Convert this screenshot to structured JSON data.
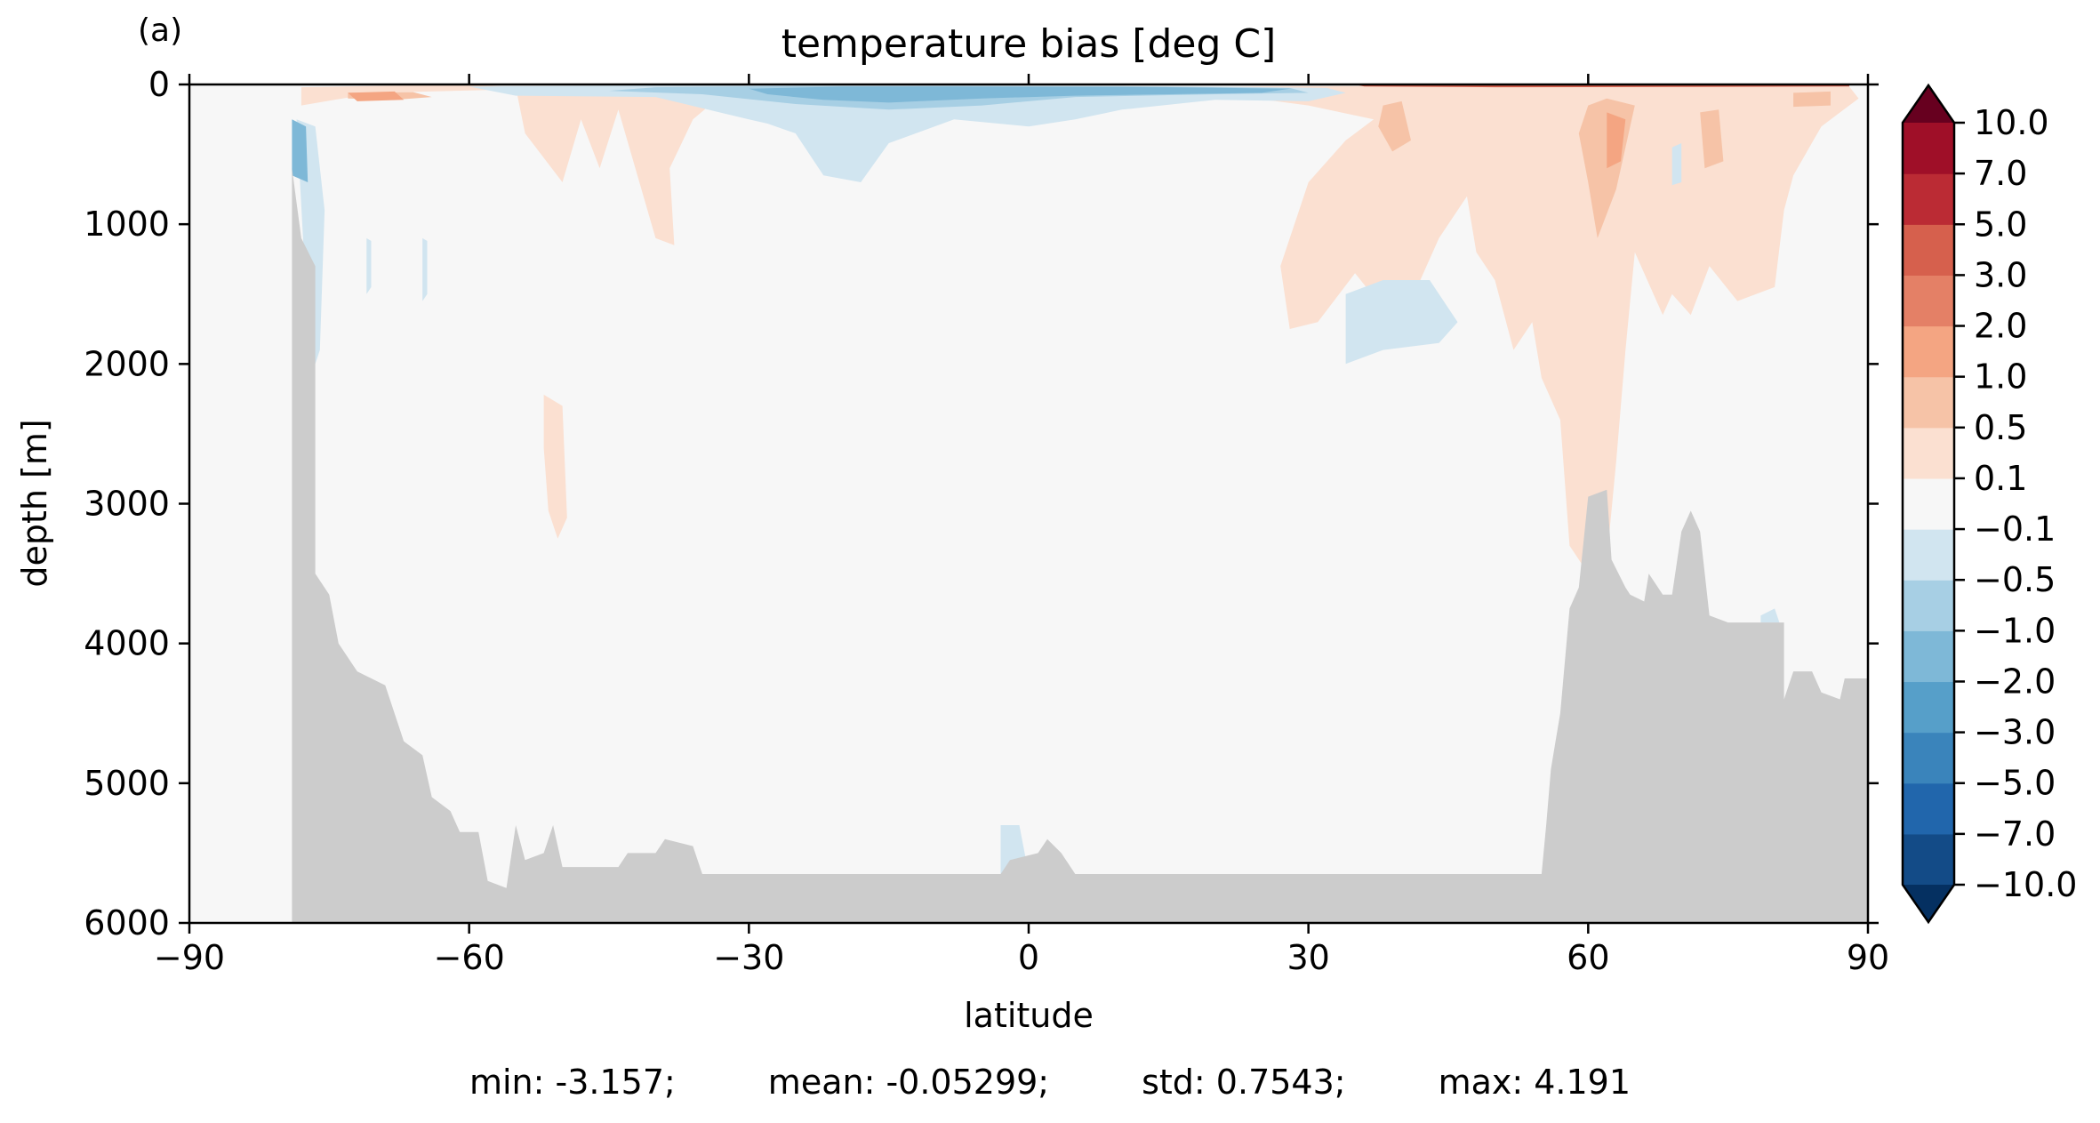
{
  "panel_label": "(a)",
  "chart_data": {
    "type": "heatmap",
    "title": "temperature bias [deg C]",
    "xlabel": "latitude",
    "ylabel": "depth [m]",
    "xlim": [
      -90,
      90
    ],
    "ylim": [
      6000,
      0
    ],
    "y_inverted": true,
    "xticks": [
      -90,
      -60,
      -30,
      0,
      30,
      60,
      90
    ],
    "xtick_labels": [
      "−90",
      "−60",
      "−30",
      "0",
      "30",
      "60",
      "90"
    ],
    "yticks": [
      0,
      1000,
      2000,
      3000,
      4000,
      5000,
      6000
    ],
    "ytick_labels": [
      "0",
      "1000",
      "2000",
      "3000",
      "4000",
      "5000",
      "6000"
    ],
    "grid": false,
    "colorbar": {
      "levels": [
        -10.0,
        -7.0,
        -5.0,
        -3.0,
        -2.0,
        -1.0,
        -0.5,
        -0.1,
        0.1,
        0.5,
        1.0,
        2.0,
        3.0,
        5.0,
        7.0,
        10.0
      ],
      "labels": [
        "−10.0",
        "−7.0",
        "−5.0",
        "−3.0",
        "−2.0",
        "−1.0",
        "−0.5",
        "−0.1",
        "0.1",
        "0.5",
        "1.0",
        "2.0",
        "3.0",
        "5.0",
        "7.0",
        "10.0"
      ],
      "colors": [
        "#134b87",
        "#2166ac",
        "#3a84bb",
        "#569fc9",
        "#7eb8d7",
        "#a7cfe4",
        "#d1e5f0",
        "#f7f7f7",
        "#fbe0d1",
        "#f6c3a7",
        "#f4a582",
        "#e48066",
        "#d6604d",
        "#bb2b34",
        "#9f0f28"
      ],
      "extend": "both",
      "extend_colors": {
        "under": "#053061",
        "over": "#67001f"
      }
    },
    "land_color": "#cccccc",
    "bathymetry": [
      [
        -90,
        6000
      ],
      [
        -79,
        6000
      ],
      [
        -79,
        600
      ],
      [
        -78,
        1100
      ],
      [
        -76.5,
        1300
      ],
      [
        -76.5,
        3500
      ],
      [
        -75,
        3650
      ],
      [
        -74,
        4000
      ],
      [
        -72,
        4200
      ],
      [
        -69,
        4300
      ],
      [
        -67,
        4700
      ],
      [
        -65,
        4800
      ],
      [
        -64,
        5100
      ],
      [
        -62,
        5200
      ],
      [
        -61,
        5350
      ],
      [
        -59,
        5350
      ],
      [
        -58,
        5700
      ],
      [
        -56,
        5750
      ],
      [
        -55,
        5300
      ],
      [
        -54,
        5550
      ],
      [
        -52,
        5500
      ],
      [
        -51,
        5300
      ],
      [
        -50,
        5600
      ],
      [
        -44,
        5600
      ],
      [
        -43,
        5500
      ],
      [
        -40,
        5500
      ],
      [
        -39,
        5400
      ],
      [
        -36,
        5450
      ],
      [
        -35,
        5650
      ],
      [
        -3,
        5650
      ],
      [
        -2,
        5550
      ],
      [
        1,
        5500
      ],
      [
        2,
        5400
      ],
      [
        3.5,
        5500
      ],
      [
        5,
        5650
      ],
      [
        55,
        5650
      ],
      [
        55.5,
        5300
      ],
      [
        56,
        4900
      ],
      [
        56.5,
        4700
      ],
      [
        57,
        4500
      ],
      [
        58,
        3750
      ],
      [
        59,
        3600
      ],
      [
        60,
        2950
      ],
      [
        62,
        2900
      ],
      [
        62.5,
        3400
      ],
      [
        64,
        3600
      ],
      [
        64.5,
        3650
      ],
      [
        66,
        3700
      ],
      [
        66.5,
        3500
      ],
      [
        68,
        3650
      ],
      [
        69,
        3650
      ],
      [
        70,
        3200
      ],
      [
        71,
        3050
      ],
      [
        72,
        3200
      ],
      [
        73,
        3800
      ],
      [
        75,
        3850
      ],
      [
        81,
        3850
      ],
      [
        81,
        4400
      ],
      [
        82,
        4200
      ],
      [
        84,
        4200
      ],
      [
        85,
        4350
      ],
      [
        87,
        4400
      ],
      [
        87.5,
        4250
      ],
      [
        90,
        4250
      ],
      [
        90,
        6000
      ]
    ],
    "contours": [
      {
        "value": 0.3,
        "points": [
          [
            -78,
            20
          ],
          [
            -70,
            10
          ],
          [
            -60,
            0
          ],
          [
            -55,
            20
          ],
          [
            -54,
            350
          ],
          [
            -50,
            700
          ],
          [
            -48,
            250
          ],
          [
            -46,
            600
          ],
          [
            -44,
            180
          ],
          [
            -40,
            1100
          ],
          [
            -38,
            1150
          ],
          [
            -38.5,
            600
          ],
          [
            -36,
            250
          ],
          [
            -33,
            80
          ],
          [
            -40,
            45
          ],
          [
            -55,
            35
          ],
          [
            -70,
            60
          ],
          [
            -78,
            150
          ]
        ]
      },
      {
        "value": 0.8,
        "points": [
          [
            -73,
            60
          ],
          [
            -66,
            55
          ],
          [
            -64,
            90
          ],
          [
            -68,
            110
          ],
          [
            -73,
            100
          ]
        ]
      },
      {
        "value": 0.3,
        "points": [
          [
            -52,
            2220
          ],
          [
            -50,
            2300
          ],
          [
            -49.5,
            3100
          ],
          [
            -50.5,
            3250
          ],
          [
            -51.5,
            3050
          ],
          [
            -52,
            2600
          ]
        ]
      },
      {
        "value": 0.3,
        "points": [
          [
            15,
            20
          ],
          [
            40,
            8
          ],
          [
            88,
            15
          ],
          [
            89,
            100
          ],
          [
            85,
            300
          ],
          [
            82,
            650
          ],
          [
            81,
            900
          ],
          [
            80,
            1450
          ],
          [
            76,
            1550
          ],
          [
            73,
            1300
          ],
          [
            71,
            1650
          ],
          [
            69,
            1500
          ],
          [
            68,
            1650
          ],
          [
            65,
            1200
          ],
          [
            64,
            1900
          ],
          [
            63,
            2700
          ],
          [
            62,
            3400
          ],
          [
            60,
            3500
          ],
          [
            58,
            3300
          ],
          [
            57,
            2400
          ],
          [
            55,
            2100
          ],
          [
            54,
            1700
          ],
          [
            52,
            1900
          ],
          [
            50,
            1400
          ],
          [
            48,
            1200
          ],
          [
            47,
            800
          ],
          [
            44,
            1100
          ],
          [
            42,
            1400
          ],
          [
            40,
            1650
          ],
          [
            38,
            1600
          ],
          [
            35,
            1350
          ],
          [
            31,
            1700
          ],
          [
            28,
            1750
          ],
          [
            27,
            1300
          ],
          [
            30,
            700
          ],
          [
            34,
            400
          ],
          [
            37,
            250
          ],
          [
            30,
            150
          ],
          [
            22,
            80
          ],
          [
            15,
            60
          ]
        ]
      },
      {
        "value": 0.8,
        "points": [
          [
            60,
            150
          ],
          [
            62,
            100
          ],
          [
            65,
            150
          ],
          [
            64,
            450
          ],
          [
            63,
            750
          ],
          [
            61,
            1100
          ],
          [
            60,
            700
          ],
          [
            59,
            350
          ]
        ]
      },
      {
        "value": 1.5,
        "points": [
          [
            62,
            200
          ],
          [
            64,
            250
          ],
          [
            63.5,
            550
          ],
          [
            62,
            600
          ]
        ]
      },
      {
        "value": 0.8,
        "points": [
          [
            38,
            150
          ],
          [
            40,
            120
          ],
          [
            41,
            400
          ],
          [
            39,
            480
          ],
          [
            37.5,
            300
          ]
        ]
      },
      {
        "value": 0.8,
        "points": [
          [
            72,
            200
          ],
          [
            74,
            180
          ],
          [
            74.5,
            550
          ],
          [
            72.5,
            600
          ]
        ]
      },
      {
        "value": 0.8,
        "points": [
          [
            82,
            60
          ],
          [
            86,
            50
          ],
          [
            86,
            150
          ],
          [
            82,
            160
          ]
        ]
      },
      {
        "value": 3.0,
        "points": [
          [
            35,
            2
          ],
          [
            55,
            0
          ],
          [
            75,
            0
          ],
          [
            88,
            2
          ],
          [
            88,
            14
          ],
          [
            70,
            18
          ],
          [
            50,
            20
          ],
          [
            36,
            14
          ]
        ]
      },
      {
        "value": 1.5,
        "points": [
          [
            -73,
            60
          ],
          [
            -68,
            50
          ],
          [
            -67,
            110
          ],
          [
            -72,
            120
          ]
        ]
      },
      {
        "value": -0.3,
        "points": [
          [
            -60,
            15
          ],
          [
            -36,
            6
          ],
          [
            -5,
            10
          ],
          [
            20,
            15
          ],
          [
            32,
            25
          ],
          [
            34,
            60
          ],
          [
            30,
            120
          ],
          [
            20,
            110
          ],
          [
            10,
            180
          ],
          [
            5,
            250
          ],
          [
            0,
            300
          ],
          [
            -8,
            250
          ],
          [
            -15,
            420
          ],
          [
            -18,
            700
          ],
          [
            -22,
            650
          ],
          [
            -25,
            350
          ],
          [
            -28,
            280
          ],
          [
            -30,
            250
          ],
          [
            -40,
            90
          ],
          [
            -55,
            80
          ]
        ]
      },
      {
        "value": -0.8,
        "points": [
          [
            -40,
            20
          ],
          [
            -25,
            12
          ],
          [
            -8,
            10
          ],
          [
            10,
            12
          ],
          [
            28,
            25
          ],
          [
            30,
            60
          ],
          [
            20,
            70
          ],
          [
            5,
            90
          ],
          [
            -5,
            150
          ],
          [
            -15,
            180
          ],
          [
            -25,
            140
          ],
          [
            -35,
            70
          ],
          [
            -45,
            45
          ]
        ]
      },
      {
        "value": -1.5,
        "points": [
          [
            -30,
            30
          ],
          [
            -20,
            15
          ],
          [
            -10,
            15
          ],
          [
            15,
            20
          ],
          [
            28,
            30
          ],
          [
            25,
            60
          ],
          [
            15,
            70
          ],
          [
            5,
            80
          ],
          [
            -5,
            100
          ],
          [
            -15,
            130
          ],
          [
            -22,
            110
          ],
          [
            -28,
            70
          ]
        ]
      },
      {
        "value": -0.3,
        "points": [
          [
            -78.5,
            250
          ],
          [
            -76.5,
            300
          ],
          [
            -75.5,
            900
          ],
          [
            -76,
            1900
          ],
          [
            -77,
            2100
          ]
        ]
      },
      {
        "value": -1.5,
        "points": [
          [
            -79,
            250
          ],
          [
            -77.5,
            300
          ],
          [
            -77.3,
            700
          ],
          [
            -79,
            650
          ]
        ]
      },
      {
        "value": -0.3,
        "points": [
          [
            -71,
            1100
          ],
          [
            -70.5,
            1120
          ],
          [
            -70.5,
            1450
          ],
          [
            -71,
            1500
          ]
        ]
      },
      {
        "value": -0.3,
        "points": [
          [
            -65,
            1100
          ],
          [
            -64.5,
            1120
          ],
          [
            -64.5,
            1500
          ],
          [
            -65,
            1550
          ]
        ]
      },
      {
        "value": -0.3,
        "points": [
          [
            34,
            1500
          ],
          [
            38,
            1400
          ],
          [
            43,
            1400
          ],
          [
            46,
            1700
          ],
          [
            44,
            1850
          ],
          [
            38,
            1900
          ],
          [
            34,
            2000
          ]
        ]
      },
      {
        "value": -0.3,
        "points": [
          [
            69,
            450
          ],
          [
            70,
            420
          ],
          [
            70,
            700
          ],
          [
            69,
            720
          ]
        ]
      },
      {
        "value": -0.3,
        "points": [
          [
            78.5,
            3800
          ],
          [
            80,
            3750
          ],
          [
            80.5,
            3850
          ],
          [
            78.5,
            3850
          ]
        ]
      },
      {
        "value": -0.3,
        "points": [
          [
            -3,
            5300
          ],
          [
            -1,
            5300
          ],
          [
            0,
            5650
          ],
          [
            -3,
            5650
          ]
        ]
      },
      {
        "value": 0.3,
        "points": [
          [
            -76,
            3600
          ],
          [
            -75.5,
            3620
          ],
          [
            -75.5,
            4200
          ],
          [
            -76,
            4250
          ]
        ]
      }
    ]
  },
  "stats": {
    "min": "min: -3.157;",
    "mean": "mean: -0.05299;",
    "std": "std: 0.7543;",
    "max": "max: 4.191"
  }
}
